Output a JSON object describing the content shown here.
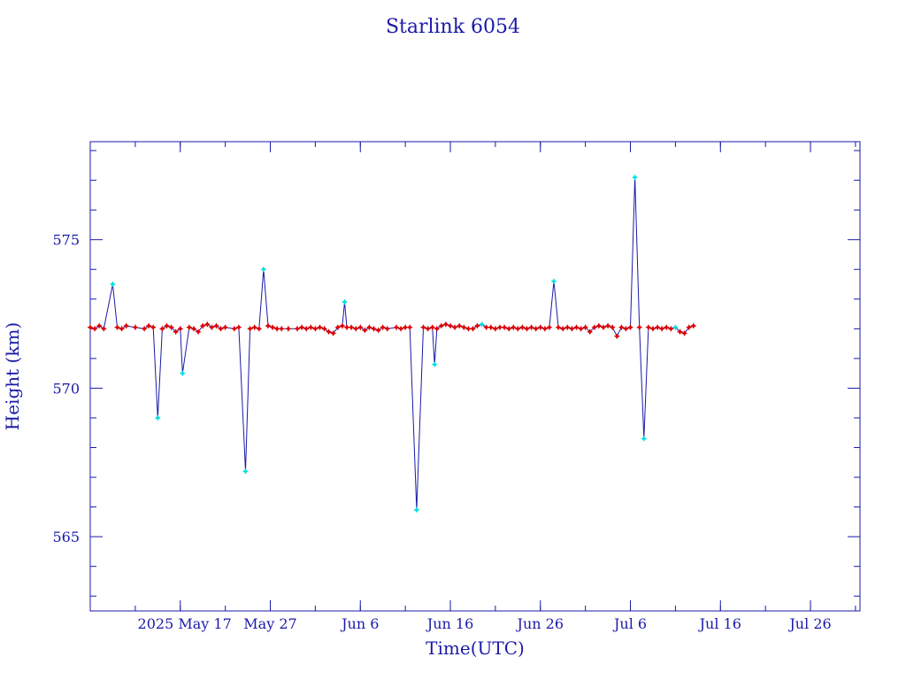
{
  "chart_data": {
    "type": "line",
    "title": "Starlink 6054",
    "xlabel": "Time(UTC)",
    "ylabel": "Height (km)",
    "x_unit": "date",
    "xlim": [
      "2025-05-07T00:00",
      "2025-07-31T12:00"
    ],
    "ylim": [
      562.5,
      578.3
    ],
    "x_ticks": [
      {
        "date": "2025-05-17",
        "label": "2025 May 17"
      },
      {
        "date": "2025-05-27",
        "label": "May 27"
      },
      {
        "date": "2025-06-06",
        "label": "Jun  6"
      },
      {
        "date": "2025-06-16",
        "label": "Jun 16"
      },
      {
        "date": "2025-06-26",
        "label": "Jun 26"
      },
      {
        "date": "2025-07-06",
        "label": "Jul  6"
      },
      {
        "date": "2025-07-16",
        "label": "Jul 16"
      },
      {
        "date": "2025-07-26",
        "label": "Jul 26"
      }
    ],
    "y_ticks": [
      {
        "value": 565,
        "label": "565"
      },
      {
        "value": 570,
        "label": "570"
      },
      {
        "value": 575,
        "label": "575"
      }
    ],
    "colors": {
      "axis": "#1a1aa8",
      "line": "#1a1aa8",
      "marker_red": "#e00000",
      "marker_cyan": "#00e0e0"
    },
    "series": [
      {
        "points": [
          {
            "x": "2025-05-07T00:00",
            "y": 572.05,
            "m": "red"
          },
          {
            "x": "2025-05-07T12:00",
            "y": 572.0,
            "m": "red"
          },
          {
            "x": "2025-05-08T00:00",
            "y": 572.1,
            "m": "red"
          },
          {
            "x": "2025-05-08T12:00",
            "y": 572.0,
            "m": "red"
          },
          {
            "x": "2025-05-09T12:00",
            "y": 573.5,
            "m": "cyan"
          },
          {
            "x": "2025-05-10T00:00",
            "y": 572.05,
            "m": "red"
          },
          {
            "x": "2025-05-10T12:00",
            "y": 572.0,
            "m": "red"
          },
          {
            "x": "2025-05-11T00:00",
            "y": 572.1,
            "m": "red"
          },
          {
            "x": "2025-05-12T00:00",
            "y": 572.05,
            "m": "red"
          },
          {
            "x": "2025-05-13T00:00",
            "y": 572.0,
            "m": "red"
          },
          {
            "x": "2025-05-13T12:00",
            "y": 572.1,
            "m": "red"
          },
          {
            "x": "2025-05-14T00:00",
            "y": 572.05,
            "m": "red"
          },
          {
            "x": "2025-05-14T12:00",
            "y": 569.0,
            "m": "cyan"
          },
          {
            "x": "2025-05-15T00:00",
            "y": 572.0,
            "m": "red"
          },
          {
            "x": "2025-05-15T12:00",
            "y": 572.1,
            "m": "red"
          },
          {
            "x": "2025-05-16T00:00",
            "y": 572.05,
            "m": "red"
          },
          {
            "x": "2025-05-16T12:00",
            "y": 571.9,
            "m": "red"
          },
          {
            "x": "2025-05-17T00:00",
            "y": 572.0,
            "m": "red"
          },
          {
            "x": "2025-05-17T06:00",
            "y": 570.5,
            "m": "cyan"
          },
          {
            "x": "2025-05-18T00:00",
            "y": 572.05,
            "m": "red"
          },
          {
            "x": "2025-05-18T12:00",
            "y": 572.0,
            "m": "red"
          },
          {
            "x": "2025-05-19T00:00",
            "y": 571.9,
            "m": "red"
          },
          {
            "x": "2025-05-19T12:00",
            "y": 572.1,
            "m": "red"
          },
          {
            "x": "2025-05-20T00:00",
            "y": 572.15,
            "m": "red"
          },
          {
            "x": "2025-05-20T12:00",
            "y": 572.05,
            "m": "red"
          },
          {
            "x": "2025-05-21T00:00",
            "y": 572.1,
            "m": "red"
          },
          {
            "x": "2025-05-21T12:00",
            "y": 572.0,
            "m": "red"
          },
          {
            "x": "2025-05-22T00:00",
            "y": 572.05,
            "m": "red"
          },
          {
            "x": "2025-05-23T00:00",
            "y": 572.0,
            "m": "red"
          },
          {
            "x": "2025-05-23T12:00",
            "y": 572.05,
            "m": "red"
          },
          {
            "x": "2025-05-24T06:00",
            "y": 567.2,
            "m": "cyan"
          },
          {
            "x": "2025-05-24T18:00",
            "y": 572.0,
            "m": "red"
          },
          {
            "x": "2025-05-25T06:00",
            "y": 572.05,
            "m": "red"
          },
          {
            "x": "2025-05-25T18:00",
            "y": 572.0,
            "m": "red"
          },
          {
            "x": "2025-05-26T06:00",
            "y": 574.0,
            "m": "cyan"
          },
          {
            "x": "2025-05-26T18:00",
            "y": 572.1,
            "m": "red"
          },
          {
            "x": "2025-05-27T06:00",
            "y": 572.05,
            "m": "red"
          },
          {
            "x": "2025-05-27T18:00",
            "y": 572.0,
            "m": "red"
          },
          {
            "x": "2025-05-28T06:00",
            "y": 572.0,
            "m": "red"
          },
          {
            "x": "2025-05-29T00:00",
            "y": 572.0,
            "m": "red"
          },
          {
            "x": "2025-05-30T00:00",
            "y": 572.0,
            "m": "red"
          },
          {
            "x": "2025-05-30T12:00",
            "y": 572.05,
            "m": "red"
          },
          {
            "x": "2025-05-31T00:00",
            "y": 572.0,
            "m": "red"
          },
          {
            "x": "2025-05-31T12:00",
            "y": 572.05,
            "m": "red"
          },
          {
            "x": "2025-06-01T00:00",
            "y": 572.0,
            "m": "red"
          },
          {
            "x": "2025-06-01T12:00",
            "y": 572.05,
            "m": "red"
          },
          {
            "x": "2025-06-02T00:00",
            "y": 572.0,
            "m": "red"
          },
          {
            "x": "2025-06-02T12:00",
            "y": 571.9,
            "m": "red"
          },
          {
            "x": "2025-06-03T00:00",
            "y": 571.85,
            "m": "red"
          },
          {
            "x": "2025-06-03T12:00",
            "y": 572.05,
            "m": "red"
          },
          {
            "x": "2025-06-04T00:00",
            "y": 572.1,
            "m": "red"
          },
          {
            "x": "2025-06-04T06:00",
            "y": 572.9,
            "m": "cyan"
          },
          {
            "x": "2025-06-04T12:00",
            "y": 572.05,
            "m": "red"
          },
          {
            "x": "2025-06-05T00:00",
            "y": 572.05,
            "m": "red"
          },
          {
            "x": "2025-06-05T12:00",
            "y": 572.0,
            "m": "red"
          },
          {
            "x": "2025-06-06T00:00",
            "y": 572.05,
            "m": "red"
          },
          {
            "x": "2025-06-06T12:00",
            "y": 571.95,
            "m": "red"
          },
          {
            "x": "2025-06-07T00:00",
            "y": 572.05,
            "m": "red"
          },
          {
            "x": "2025-06-07T12:00",
            "y": 572.0,
            "m": "red"
          },
          {
            "x": "2025-06-08T00:00",
            "y": 571.95,
            "m": "red"
          },
          {
            "x": "2025-06-08T12:00",
            "y": 572.05,
            "m": "red"
          },
          {
            "x": "2025-06-09T00:00",
            "y": 572.0,
            "m": "red"
          },
          {
            "x": "2025-06-10T00:00",
            "y": 572.05,
            "m": "red"
          },
          {
            "x": "2025-06-10T12:00",
            "y": 572.0,
            "m": "red"
          },
          {
            "x": "2025-06-11T00:00",
            "y": 572.05,
            "m": "red"
          },
          {
            "x": "2025-06-11T12:00",
            "y": 572.05,
            "m": "red"
          },
          {
            "x": "2025-06-12T06:00",
            "y": 565.9,
            "m": "cyan"
          },
          {
            "x": "2025-06-13T00:00",
            "y": 572.05,
            "m": "red"
          },
          {
            "x": "2025-06-13T12:00",
            "y": 572.0,
            "m": "red"
          },
          {
            "x": "2025-06-14T00:00",
            "y": 572.05,
            "m": "red"
          },
          {
            "x": "2025-06-14T06:00",
            "y": 570.8,
            "m": "cyan"
          },
          {
            "x": "2025-06-14T12:00",
            "y": 572.0,
            "m": "red"
          },
          {
            "x": "2025-06-15T00:00",
            "y": 572.1,
            "m": "red"
          },
          {
            "x": "2025-06-15T12:00",
            "y": 572.15,
            "m": "red"
          },
          {
            "x": "2025-06-16T00:00",
            "y": 572.1,
            "m": "red"
          },
          {
            "x": "2025-06-16T12:00",
            "y": 572.05,
            "m": "red"
          },
          {
            "x": "2025-06-17T00:00",
            "y": 572.1,
            "m": "red"
          },
          {
            "x": "2025-06-17T12:00",
            "y": 572.05,
            "m": "red"
          },
          {
            "x": "2025-06-18T00:00",
            "y": 572.0,
            "m": "red"
          },
          {
            "x": "2025-06-18T12:00",
            "y": 572.0,
            "m": "red"
          },
          {
            "x": "2025-06-19T00:00",
            "y": 572.1,
            "m": "red"
          },
          {
            "x": "2025-06-19T12:00",
            "y": 572.15,
            "m": "cyan"
          },
          {
            "x": "2025-06-20T00:00",
            "y": 572.05,
            "m": "red"
          },
          {
            "x": "2025-06-20T12:00",
            "y": 572.05,
            "m": "red"
          },
          {
            "x": "2025-06-21T00:00",
            "y": 572.0,
            "m": "red"
          },
          {
            "x": "2025-06-21T12:00",
            "y": 572.05,
            "m": "red"
          },
          {
            "x": "2025-06-22T00:00",
            "y": 572.05,
            "m": "red"
          },
          {
            "x": "2025-06-22T12:00",
            "y": 572.0,
            "m": "red"
          },
          {
            "x": "2025-06-23T00:00",
            "y": 572.05,
            "m": "red"
          },
          {
            "x": "2025-06-23T12:00",
            "y": 572.0,
            "m": "red"
          },
          {
            "x": "2025-06-24T00:00",
            "y": 572.05,
            "m": "red"
          },
          {
            "x": "2025-06-24T12:00",
            "y": 572.0,
            "m": "red"
          },
          {
            "x": "2025-06-25T00:00",
            "y": 572.05,
            "m": "red"
          },
          {
            "x": "2025-06-25T12:00",
            "y": 572.0,
            "m": "red"
          },
          {
            "x": "2025-06-26T00:00",
            "y": 572.05,
            "m": "red"
          },
          {
            "x": "2025-06-26T12:00",
            "y": 572.0,
            "m": "red"
          },
          {
            "x": "2025-06-27T00:00",
            "y": 572.05,
            "m": "red"
          },
          {
            "x": "2025-06-27T12:00",
            "y": 573.6,
            "m": "cyan"
          },
          {
            "x": "2025-06-28T00:00",
            "y": 572.05,
            "m": "red"
          },
          {
            "x": "2025-06-28T12:00",
            "y": 572.0,
            "m": "red"
          },
          {
            "x": "2025-06-29T00:00",
            "y": 572.05,
            "m": "red"
          },
          {
            "x": "2025-06-29T12:00",
            "y": 572.0,
            "m": "red"
          },
          {
            "x": "2025-06-30T00:00",
            "y": 572.05,
            "m": "red"
          },
          {
            "x": "2025-06-30T12:00",
            "y": 572.0,
            "m": "red"
          },
          {
            "x": "2025-07-01T00:00",
            "y": 572.05,
            "m": "red"
          },
          {
            "x": "2025-07-01T12:00",
            "y": 571.9,
            "m": "red"
          },
          {
            "x": "2025-07-02T00:00",
            "y": 572.05,
            "m": "red"
          },
          {
            "x": "2025-07-02T12:00",
            "y": 572.1,
            "m": "red"
          },
          {
            "x": "2025-07-03T00:00",
            "y": 572.05,
            "m": "red"
          },
          {
            "x": "2025-07-03T12:00",
            "y": 572.1,
            "m": "red"
          },
          {
            "x": "2025-07-04T00:00",
            "y": 572.05,
            "m": "red"
          },
          {
            "x": "2025-07-04T12:00",
            "y": 571.75,
            "m": "red"
          },
          {
            "x": "2025-07-05T00:00",
            "y": 572.05,
            "m": "red"
          },
          {
            "x": "2025-07-05T12:00",
            "y": 572.0,
            "m": "red"
          },
          {
            "x": "2025-07-06T00:00",
            "y": 572.05,
            "m": "red"
          },
          {
            "x": "2025-07-06T12:00",
            "y": 577.1,
            "m": "cyan"
          },
          {
            "x": "2025-07-07T00:00",
            "y": 572.05,
            "m": "red"
          },
          {
            "x": "2025-07-07T12:00",
            "y": 568.3,
            "m": "cyan"
          },
          {
            "x": "2025-07-08T00:00",
            "y": 572.05,
            "m": "red"
          },
          {
            "x": "2025-07-08T12:00",
            "y": 572.0,
            "m": "red"
          },
          {
            "x": "2025-07-09T00:00",
            "y": 572.05,
            "m": "red"
          },
          {
            "x": "2025-07-09T12:00",
            "y": 572.0,
            "m": "red"
          },
          {
            "x": "2025-07-10T00:00",
            "y": 572.05,
            "m": "red"
          },
          {
            "x": "2025-07-10T12:00",
            "y": 572.0,
            "m": "red"
          },
          {
            "x": "2025-07-11T00:00",
            "y": 572.05,
            "m": "cyan"
          },
          {
            "x": "2025-07-11T12:00",
            "y": 571.9,
            "m": "red"
          },
          {
            "x": "2025-07-12T00:00",
            "y": 571.85,
            "m": "red"
          },
          {
            "x": "2025-07-12T12:00",
            "y": 572.05,
            "m": "red"
          },
          {
            "x": "2025-07-13T00:00",
            "y": 572.1,
            "m": "red"
          }
        ]
      }
    ]
  }
}
